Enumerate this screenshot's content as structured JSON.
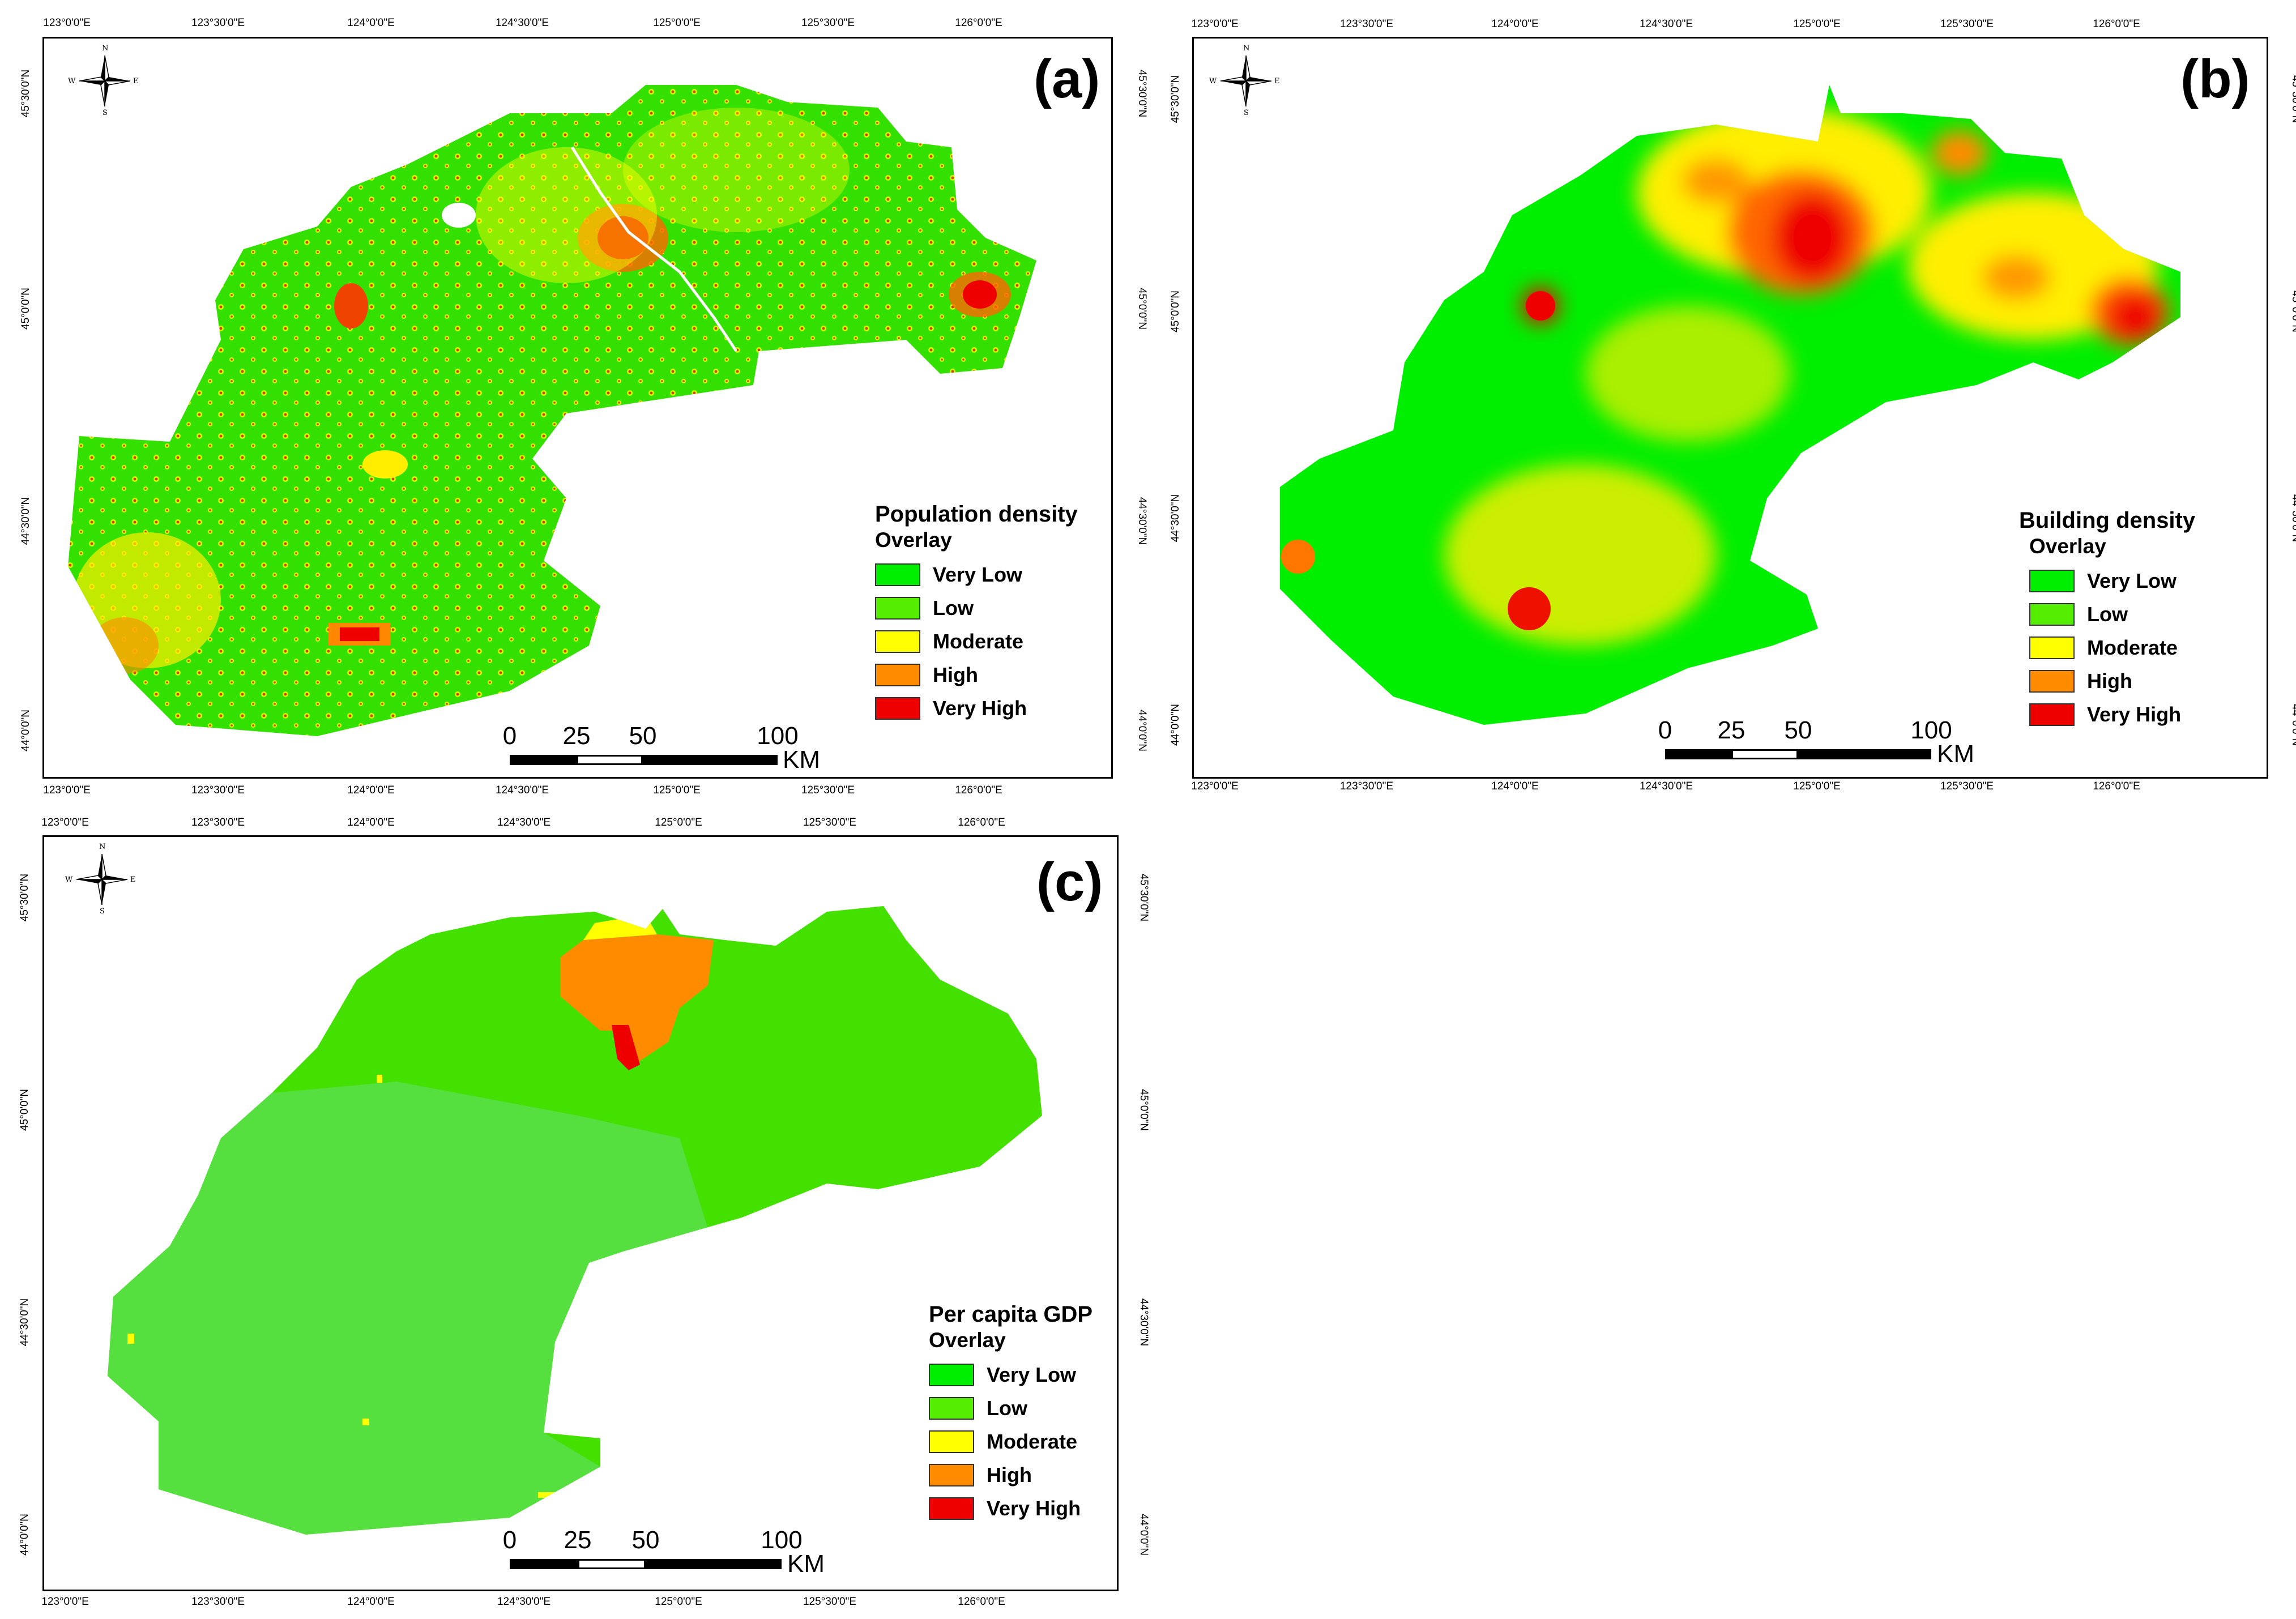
{
  "legend_classes": [
    {
      "label": "Very Low",
      "color": "#00ee00"
    },
    {
      "label": "Low",
      "color": "#55ee00"
    },
    {
      "label": "Moderate",
      "color": "#ffff00"
    },
    {
      "label": "High",
      "color": "#ff8c00"
    },
    {
      "label": "Very High",
      "color": "#ee0000"
    }
  ],
  "legend_subtitle": "Overlay",
  "ticks": {
    "x": [
      "123°0'0\"E",
      "123°30'0\"E",
      "124°0'0\"E",
      "124°30'0\"E",
      "125°0'0\"E",
      "125°30'0\"E",
      "126°0'0\"E"
    ],
    "y": [
      "45°30'0\"N",
      "45°0'0\"N",
      "44°30'0\"N",
      "44°0'0\"N"
    ]
  },
  "scale": {
    "labels": [
      "0",
      "25",
      "50",
      "100"
    ],
    "unit": "KM"
  },
  "compass": {
    "n": "N",
    "s": "S",
    "e": "E",
    "w": "W"
  },
  "panels": [
    {
      "id": "a",
      "label": "(a)",
      "title": "Population density"
    },
    {
      "id": "b",
      "label": "(b)",
      "title": "Building density"
    },
    {
      "id": "c",
      "label": "(c)",
      "title": "Per capita GDP"
    }
  ]
}
